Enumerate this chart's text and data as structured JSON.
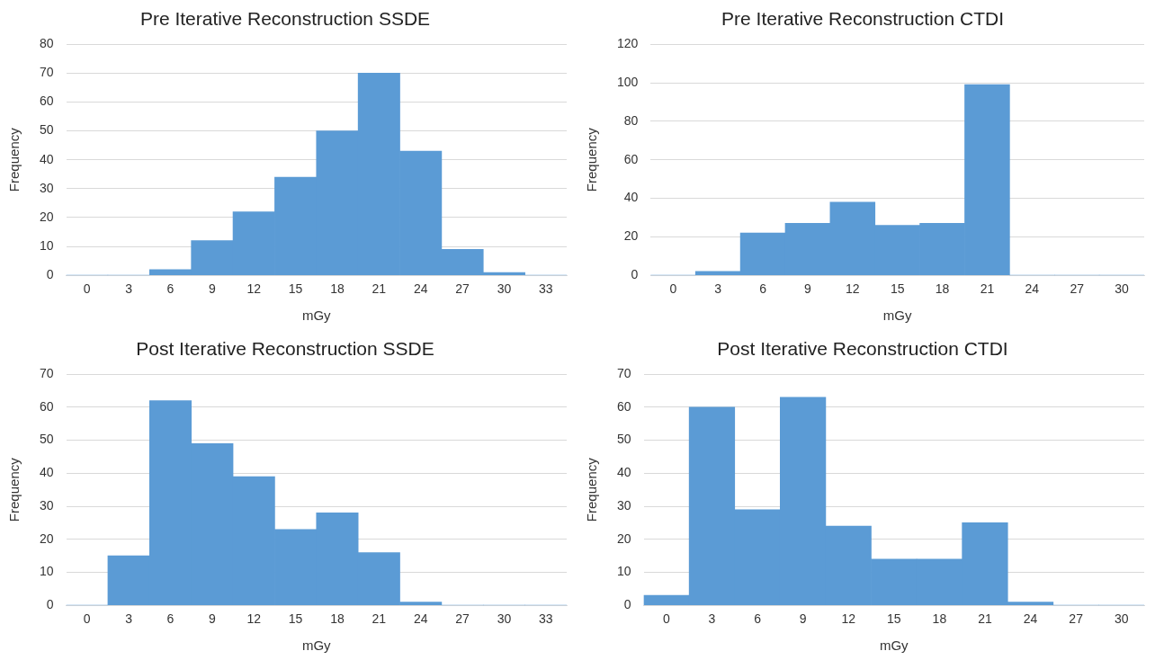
{
  "chart_data": [
    {
      "type": "bar",
      "title": "Pre Iterative Reconstruction SSDE",
      "xlabel": "mGy",
      "ylabel": "Frequency",
      "categories": [
        "0",
        "3",
        "6",
        "9",
        "12",
        "15",
        "18",
        "21",
        "24",
        "27",
        "30",
        "33"
      ],
      "values": [
        0,
        0,
        2,
        12,
        22,
        34,
        50,
        70,
        43,
        9,
        1,
        0
      ],
      "color": "#5b9bd5",
      "ylim": [
        0,
        80
      ],
      "yticks": [
        0,
        10,
        20,
        30,
        40,
        50,
        60,
        70,
        80
      ],
      "grid": "y"
    },
    {
      "type": "bar",
      "title": "Pre Iterative Reconstruction CTDI",
      "xlabel": "mGy",
      "ylabel": "Frequency",
      "categories": [
        "0",
        "3",
        "6",
        "9",
        "12",
        "15",
        "18",
        "21",
        "24",
        "27",
        "30"
      ],
      "values": [
        0,
        2,
        22,
        27,
        38,
        26,
        27,
        99,
        0,
        0,
        0
      ],
      "color": "#5b9bd5",
      "ylim": [
        0,
        120
      ],
      "yticks": [
        0,
        20,
        40,
        60,
        80,
        100,
        120
      ],
      "grid": "y"
    },
    {
      "type": "bar",
      "title": "Post Iterative Reconstruction SSDE",
      "xlabel": "mGy",
      "ylabel": "Frequency",
      "categories": [
        "0",
        "3",
        "6",
        "9",
        "12",
        "15",
        "18",
        "21",
        "24",
        "27",
        "30",
        "33"
      ],
      "values": [
        0,
        15,
        62,
        49,
        39,
        23,
        28,
        16,
        1,
        0,
        0,
        0
      ],
      "color": "#5b9bd5",
      "ylim": [
        0,
        70
      ],
      "yticks": [
        0,
        10,
        20,
        30,
        40,
        50,
        60,
        70
      ],
      "grid": "y"
    },
    {
      "type": "bar",
      "title": "Post Iterative Reconstruction CTDI",
      "xlabel": "mGy",
      "ylabel": "Frequency",
      "categories": [
        "0",
        "3",
        "6",
        "9",
        "12",
        "15",
        "18",
        "21",
        "24",
        "27",
        "30"
      ],
      "values": [
        3,
        60,
        29,
        63,
        24,
        14,
        14,
        25,
        1,
        0,
        0
      ],
      "color": "#5b9bd5",
      "ylim": [
        0,
        70
      ],
      "yticks": [
        0,
        10,
        20,
        30,
        40,
        50,
        60,
        70
      ],
      "grid": "y"
    }
  ]
}
